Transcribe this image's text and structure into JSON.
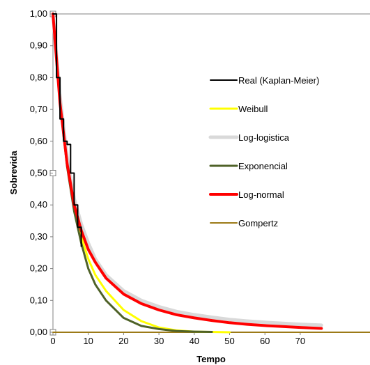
{
  "chart_data": {
    "type": "line",
    "xlabel": "Tempo",
    "ylabel": "Sobrevida",
    "xlim": [
      0,
      90
    ],
    "ylim": [
      0,
      1
    ],
    "x_ticks": [
      0,
      10,
      20,
      30,
      40,
      50,
      60,
      70
    ],
    "x_tick_labels": [
      "0",
      "10",
      "20",
      "30",
      "40",
      "50",
      "60",
      "70"
    ],
    "y_ticks": [
      0,
      0.1,
      0.2,
      0.3,
      0.4,
      0.5,
      0.6,
      0.7,
      0.8,
      0.9,
      1.0
    ],
    "y_tick_labels": [
      "0,00",
      "0,10",
      "0,20",
      "0,30",
      "0,40",
      "0,50",
      "0,60",
      "0,70",
      "0,80",
      "0,90",
      "1,00"
    ],
    "grid": false,
    "legend_position": "right",
    "series": [
      {
        "name": "Real (Kaplan-Meier)",
        "color": "#000000",
        "style": "step",
        "x": [
          0,
          1,
          2,
          3,
          4,
          5,
          6,
          7,
          8
        ],
        "y": [
          1.0,
          0.8,
          0.67,
          0.6,
          0.59,
          0.5,
          0.4,
          0.33,
          0.27
        ]
      },
      {
        "name": "Weibull",
        "color": "#ffff00",
        "x": [
          0,
          2,
          4,
          6,
          8,
          10,
          12,
          15,
          20,
          25,
          30,
          35,
          40,
          45,
          50
        ],
        "y": [
          1.0,
          0.72,
          0.53,
          0.4,
          0.3,
          0.23,
          0.18,
          0.13,
          0.07,
          0.035,
          0.015,
          0.006,
          0.002,
          0.001,
          0.0
        ]
      },
      {
        "name": "Log-logistica",
        "color": "#d9d9d9",
        "x": [
          0,
          2,
          4,
          6,
          8,
          10,
          12,
          15,
          20,
          25,
          30,
          35,
          40,
          45,
          50,
          55,
          60,
          65,
          70,
          76
        ],
        "y": [
          1.0,
          0.74,
          0.55,
          0.42,
          0.34,
          0.28,
          0.23,
          0.18,
          0.13,
          0.1,
          0.08,
          0.065,
          0.055,
          0.047,
          0.04,
          0.035,
          0.031,
          0.028,
          0.025,
          0.022
        ]
      },
      {
        "name": "Exponencial",
        "color": "#4f6228",
        "x": [
          0,
          2,
          4,
          6,
          8,
          10,
          12,
          15,
          20,
          25,
          30,
          35,
          40,
          45
        ],
        "y": [
          1.0,
          0.72,
          0.52,
          0.38,
          0.28,
          0.2,
          0.15,
          0.1,
          0.045,
          0.02,
          0.01,
          0.004,
          0.002,
          0.001
        ]
      },
      {
        "name": "Log-normal",
        "color": "#ff0000",
        "x": [
          0,
          2,
          4,
          6,
          8,
          10,
          12,
          15,
          20,
          25,
          30,
          35,
          40,
          45,
          50,
          55,
          60,
          65,
          70,
          76
        ],
        "y": [
          1.0,
          0.72,
          0.53,
          0.4,
          0.32,
          0.26,
          0.22,
          0.17,
          0.12,
          0.09,
          0.07,
          0.055,
          0.045,
          0.037,
          0.03,
          0.025,
          0.021,
          0.018,
          0.015,
          0.012
        ]
      },
      {
        "name": "Gompertz",
        "color": "#9c7a17",
        "x": [
          0,
          90
        ],
        "y": [
          0.0,
          0.0
        ]
      }
    ]
  }
}
